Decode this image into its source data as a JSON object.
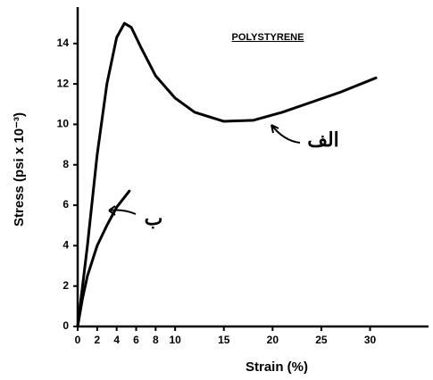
{
  "chart_data": {
    "type": "line",
    "title": "POLYSTYRENE",
    "xlabel": "Strain (%)",
    "ylabel": "Stress (psi x 10⁻³)",
    "series": [
      {
        "name": "الف",
        "color": "#000000",
        "x": [
          0,
          1,
          2,
          3,
          4,
          4.8,
          5.5,
          6.5,
          8,
          10,
          12,
          15,
          18,
          21,
          24,
          27,
          30.6
        ],
        "values": [
          0,
          4,
          8.5,
          12,
          14.3,
          15,
          14.8,
          13.8,
          12.4,
          11.3,
          10.6,
          10.15,
          10.2,
          10.6,
          11.1,
          11.6,
          12.3
        ]
      },
      {
        "name": "ب",
        "color": "#000000",
        "x": [
          0,
          0.5,
          1,
          2,
          3,
          4,
          5.3
        ],
        "values": [
          0,
          1.4,
          2.5,
          4,
          5,
          5.9,
          6.7
        ]
      }
    ],
    "xlim": [
      0,
      36
    ],
    "xticks": [
      0,
      2,
      4,
      6,
      8,
      10,
      15,
      20,
      25,
      30
    ],
    "ylim": [
      0,
      15.8
    ],
    "yticks": [
      0,
      2,
      4,
      6,
      8,
      10,
      12,
      14
    ],
    "grid": false
  }
}
